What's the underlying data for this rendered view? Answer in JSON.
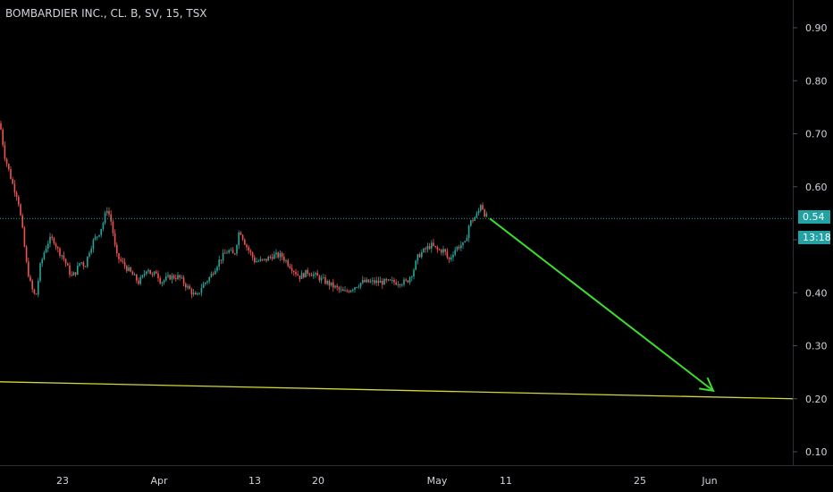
{
  "header": {
    "title": "BOMBARDIER INC., CL. B, SV, 15, TSX"
  },
  "badges": {
    "last_price": "0.54",
    "countdown": "13:18",
    "badge_color": "#21a3a6"
  },
  "colors": {
    "background": "#000000",
    "up": "#26a69a",
    "down": "#ef5350",
    "trendline": "#d4d63a",
    "arrow": "#3ddc2d",
    "last_price_line": "#21a3a6",
    "axis_text": "#d1d4dc"
  },
  "chart_data": {
    "type": "candlestick",
    "title": "BOMBARDIER INC., CL. B, SV, 15, TSX",
    "ylim": [
      0.07,
      0.93
    ],
    "y_ticks": [
      "0.90",
      "0.80",
      "0.70",
      "0.60",
      "0.50",
      "0.40",
      "0.30",
      "0.20",
      "0.10"
    ],
    "y_tick_values": [
      0.9,
      0.8,
      0.7,
      0.6,
      0.5,
      0.4,
      0.3,
      0.2,
      0.1
    ],
    "x_ticks": [
      "23",
      "Apr",
      "13",
      "20",
      "May",
      "11",
      "25",
      "Jun"
    ],
    "price_path": [
      [
        0,
        0.72
      ],
      [
        5,
        0.66
      ],
      [
        10,
        0.63
      ],
      [
        15,
        0.6
      ],
      [
        20,
        0.58
      ],
      [
        25,
        0.52
      ],
      [
        30,
        0.45
      ],
      [
        35,
        0.41
      ],
      [
        40,
        0.39
      ],
      [
        45,
        0.45
      ],
      [
        50,
        0.48
      ],
      [
        55,
        0.5
      ],
      [
        60,
        0.5
      ],
      [
        65,
        0.48
      ],
      [
        70,
        0.47
      ],
      [
        75,
        0.45
      ],
      [
        80,
        0.43
      ],
      [
        85,
        0.44
      ],
      [
        90,
        0.46
      ],
      [
        95,
        0.45
      ],
      [
        100,
        0.48
      ],
      [
        105,
        0.5
      ],
      [
        110,
        0.51
      ],
      [
        115,
        0.53
      ],
      [
        120,
        0.56
      ],
      [
        125,
        0.53
      ],
      [
        130,
        0.47
      ],
      [
        135,
        0.46
      ],
      [
        140,
        0.45
      ],
      [
        145,
        0.44
      ],
      [
        150,
        0.43
      ],
      [
        155,
        0.42
      ],
      [
        160,
        0.43
      ],
      [
        165,
        0.45
      ],
      [
        170,
        0.43
      ],
      [
        175,
        0.44
      ],
      [
        180,
        0.42
      ],
      [
        190,
        0.43
      ],
      [
        200,
        0.43
      ],
      [
        210,
        0.41
      ],
      [
        215,
        0.4
      ],
      [
        220,
        0.39
      ],
      [
        225,
        0.41
      ],
      [
        235,
        0.43
      ],
      [
        245,
        0.46
      ],
      [
        255,
        0.48
      ],
      [
        262,
        0.47
      ],
      [
        268,
        0.52
      ],
      [
        275,
        0.49
      ],
      [
        285,
        0.46
      ],
      [
        295,
        0.46
      ],
      [
        305,
        0.47
      ],
      [
        315,
        0.47
      ],
      [
        325,
        0.45
      ],
      [
        335,
        0.43
      ],
      [
        345,
        0.44
      ],
      [
        355,
        0.43
      ],
      [
        365,
        0.42
      ],
      [
        375,
        0.41
      ],
      [
        385,
        0.4
      ],
      [
        395,
        0.41
      ],
      [
        405,
        0.42
      ],
      [
        415,
        0.42
      ],
      [
        425,
        0.42
      ],
      [
        435,
        0.42
      ],
      [
        445,
        0.42
      ],
      [
        455,
        0.42
      ],
      [
        462,
        0.44
      ],
      [
        468,
        0.47
      ],
      [
        475,
        0.48
      ],
      [
        482,
        0.49
      ],
      [
        490,
        0.48
      ],
      [
        497,
        0.48
      ],
      [
        502,
        0.46
      ],
      [
        508,
        0.48
      ],
      [
        515,
        0.49
      ],
      [
        520,
        0.49
      ],
      [
        525,
        0.53
      ],
      [
        530,
        0.54
      ],
      [
        535,
        0.55
      ],
      [
        538,
        0.57
      ],
      [
        542,
        0.55
      ],
      [
        546,
        0.54
      ]
    ],
    "last_price": 0.54,
    "trendline": {
      "from": [
        0,
        0.232
      ],
      "to": [
        887,
        0.2
      ]
    },
    "arrow": {
      "from": [
        548,
        0.54
      ],
      "to": [
        798,
        0.215
      ]
    }
  }
}
